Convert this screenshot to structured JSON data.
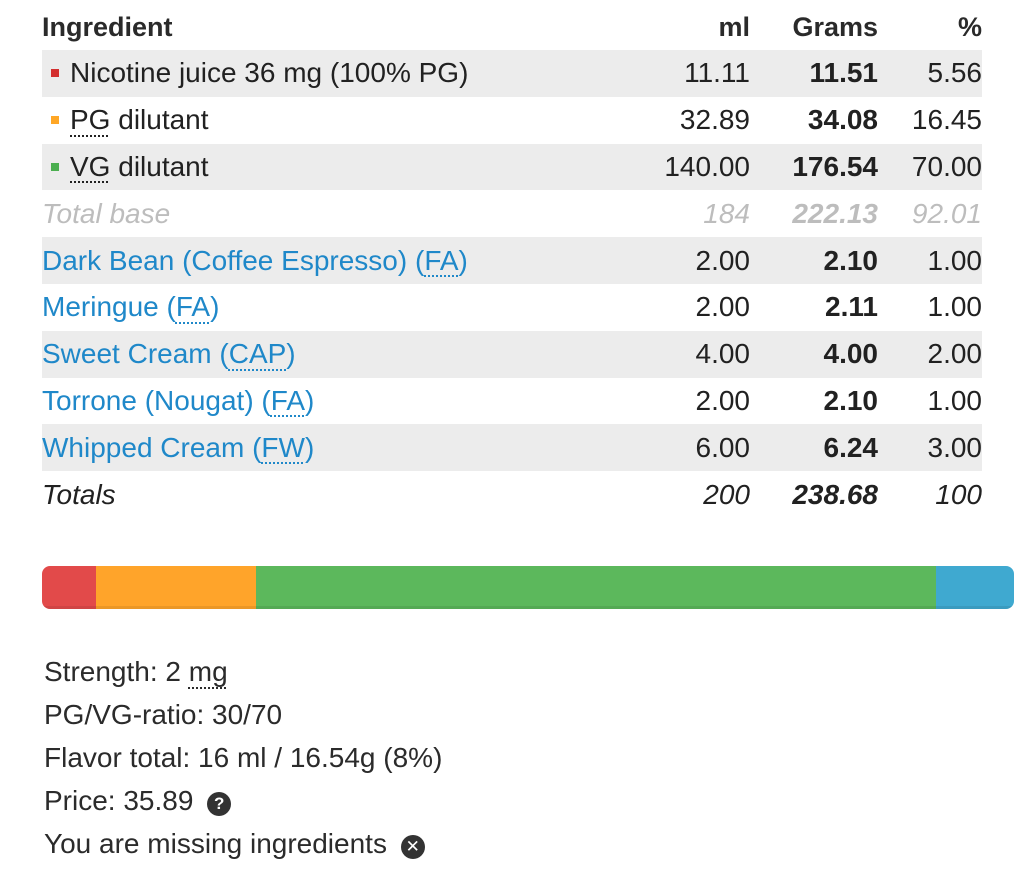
{
  "table": {
    "headers": {
      "name": "Ingredient",
      "ml": "ml",
      "grams": "Grams",
      "pct": "%"
    },
    "base_rows": [
      {
        "name": "Nicotine juice 36 mg (100% PG)",
        "ml": "11.11",
        "grams": "11.51",
        "pct": "5.56",
        "color": "#d32f2f"
      },
      {
        "name_abbr": "PG",
        "name_rest": " dilutant",
        "ml": "32.89",
        "grams": "34.08",
        "pct": "16.45",
        "color": "#ffa726"
      },
      {
        "name_abbr": "VG",
        "name_rest": " dilutant",
        "ml": "140.00",
        "grams": "176.54",
        "pct": "70.00",
        "color": "#4caf50"
      }
    ],
    "total_base": {
      "label": "Total base",
      "ml": "184",
      "grams": "222.13",
      "pct": "92.01"
    },
    "flavors": [
      {
        "name": "Dark Bean (Coffee Espresso) (",
        "vendor": "FA",
        "close": ")",
        "ml": "2.00",
        "grams": "2.10",
        "pct": "1.00"
      },
      {
        "name": "Meringue (",
        "vendor": "FA",
        "close": ")",
        "ml": "2.00",
        "grams": "2.11",
        "pct": "1.00"
      },
      {
        "name": "Sweet Cream (",
        "vendor": "CAP",
        "close": ")",
        "ml": "4.00",
        "grams": "4.00",
        "pct": "2.00"
      },
      {
        "name": "Torrone (Nougat) (",
        "vendor": "FA",
        "close": ")",
        "ml": "2.00",
        "grams": "2.10",
        "pct": "1.00"
      },
      {
        "name": "Whipped Cream (",
        "vendor": "FW",
        "close": ")",
        "ml": "6.00",
        "grams": "6.24",
        "pct": "3.00"
      }
    ],
    "totals": {
      "label": "Totals",
      "ml": "200",
      "grams": "238.68",
      "pct": "100"
    }
  },
  "mix_bar": {
    "segments": [
      {
        "name": "nicotine",
        "percent": 5.56,
        "color": "#e24a4a"
      },
      {
        "name": "pg",
        "percent": 16.45,
        "color": "#ffa42a"
      },
      {
        "name": "vg",
        "percent": 70.0,
        "color": "#5cb85c"
      },
      {
        "name": "flavor",
        "percent": 7.99,
        "color": "#3fa9d0"
      }
    ]
  },
  "summary": {
    "strength_label": "Strength: 2 ",
    "strength_unit": "mg",
    "ratio": "PG/VG-ratio: 30/70",
    "flavor_total": "Flavor total: 16 ml / 16.54g (8%)",
    "price": "Price: 35.89",
    "price_icon": "question-icon",
    "price_icon_glyph": "?",
    "missing": "You are missing ingredients",
    "missing_icon": "close-circle-icon",
    "missing_icon_glyph": "✕"
  }
}
